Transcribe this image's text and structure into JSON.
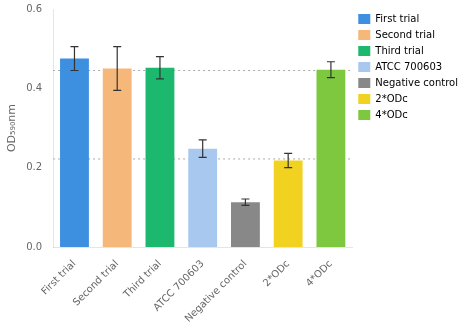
{
  "chart_data": {
    "type": "bar",
    "categories": [
      "First trial",
      "Second trial",
      "Third trial",
      "ATCC 700603",
      "Negative control",
      "2*ODc",
      "4*ODc"
    ],
    "values": [
      0.475,
      0.45,
      0.452,
      0.248,
      0.113,
      0.218,
      0.447
    ],
    "errors": [
      0.03,
      0.055,
      0.028,
      0.022,
      0.008,
      0.018,
      0.02
    ],
    "colors": [
      "#3d8fe0",
      "#f5b87a",
      "#1cb86e",
      "#a8c8f0",
      "#888888",
      "#f2d220",
      "#7ec840"
    ],
    "ylabel": "OD₅₉₀nm",
    "ylim": [
      0,
      0.6
    ],
    "yticks": [
      {
        "value": 0,
        "label": "0.0"
      },
      0.2,
      0.4,
      0.6
    ],
    "hlines": [
      0.445,
      0.222
    ],
    "grid": false,
    "legend": "right"
  }
}
